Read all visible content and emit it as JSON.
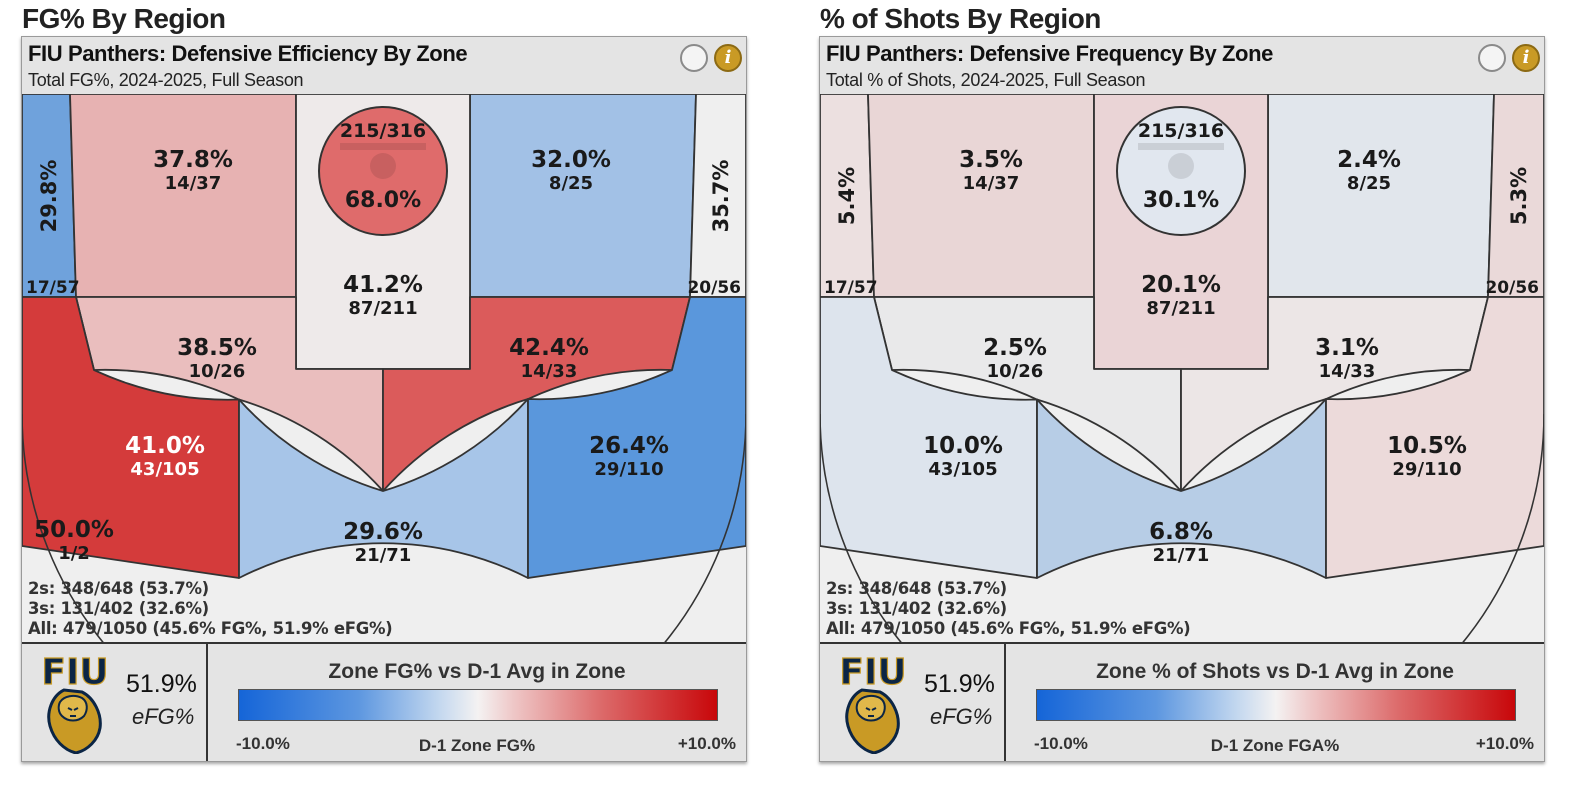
{
  "left": {
    "section_title": "FG% By Region",
    "card_title": "FIU Panthers: Defensive Efficiency By Zone",
    "card_subtitle": "Total FG%, 2024-2025, Full Season",
    "summary": [
      "2s: 348/648 (53.7%)",
      "3s: 131/402 (32.6%)",
      "All: 479/1050 (45.6% FG%, 51.9% eFG%)"
    ],
    "efg_value": "51.9%",
    "efg_label": "eFG%",
    "legend_title": "Zone FG% vs D-1 Avg in Zone",
    "legend_min": "-10.0%",
    "legend_mid": "D-1 Zone FG%",
    "legend_max": "+10.0%"
  },
  "right": {
    "section_title": "% of Shots By Region",
    "card_title": "FIU Panthers: Defensive Frequency By Zone",
    "card_subtitle": "Total % of Shots, 2024-2025, Full Season",
    "summary": [
      "2s: 348/648 (53.7%)",
      "3s: 131/402 (32.6%)",
      "All: 479/1050 (45.6% FG%, 51.9% eFG%)"
    ],
    "efg_value": "51.9%",
    "efg_label": "eFG%",
    "legend_title": "Zone % of Shots vs D-1 Avg in Zone",
    "legend_min": "-10.0%",
    "legend_mid": "D-1 Zone FGA%",
    "legend_max": "+10.0%"
  },
  "logo_text": "FIU",
  "chart_data": [
    {
      "type": "heatmap",
      "title": "FIU Panthers: Defensive Efficiency By Zone",
      "zones": [
        {
          "zone": "left-corner-3",
          "value": "29.8%",
          "attempts": "17/57",
          "color": "#6fa2dc"
        },
        {
          "zone": "left-baseline-mid",
          "value": "37.8%",
          "attempts": "14/37",
          "color": "#e7b2b2"
        },
        {
          "zone": "rim",
          "value": "68.0%",
          "attempts": "215/316",
          "color": "#df6b6b"
        },
        {
          "zone": "paint",
          "value": "41.2%",
          "attempts": "87/211",
          "color": "#eeeaea"
        },
        {
          "zone": "right-baseline-mid",
          "value": "32.0%",
          "attempts": "8/25",
          "color": "#a2c1e6"
        },
        {
          "zone": "right-corner-3",
          "value": "35.7%",
          "attempts": "20/56",
          "color": "#efefef"
        },
        {
          "zone": "left-elbow-mid",
          "value": "38.5%",
          "attempts": "10/26",
          "color": "#eabebe"
        },
        {
          "zone": "right-elbow-mid",
          "value": "42.4%",
          "attempts": "14/33",
          "color": "#db5b5b"
        },
        {
          "zone": "left-wing-3",
          "value": "41.0%",
          "attempts": "43/105",
          "color": "#d43b3b"
        },
        {
          "zone": "top-key-3",
          "value": "29.6%",
          "attempts": "21/71",
          "color": "#a7c5e8"
        },
        {
          "zone": "right-wing-3",
          "value": "26.4%",
          "attempts": "29/110",
          "color": "#5a97dc"
        },
        {
          "zone": "deep",
          "value": "50.0%",
          "attempts": "1/2",
          "color": "#efefef"
        }
      ]
    },
    {
      "type": "heatmap",
      "title": "FIU Panthers: Defensive Frequency By Zone",
      "zones": [
        {
          "zone": "left-corner-3",
          "value": "5.4%",
          "attempts": "17/57",
          "color": "#ece0e0"
        },
        {
          "zone": "left-baseline-mid",
          "value": "3.5%",
          "attempts": "14/37",
          "color": "#e9d6d6"
        },
        {
          "zone": "rim",
          "value": "30.1%",
          "attempts": "215/316",
          "color": "#e1e7ef"
        },
        {
          "zone": "paint",
          "value": "20.1%",
          "attempts": "87/211",
          "color": "#ead4d6"
        },
        {
          "zone": "right-baseline-mid",
          "value": "2.4%",
          "attempts": "8/25",
          "color": "#e1e6ec"
        },
        {
          "zone": "right-corner-3",
          "value": "5.3%",
          "attempts": "20/56",
          "color": "#ead9d9"
        },
        {
          "zone": "left-elbow-mid",
          "value": "2.5%",
          "attempts": "10/26",
          "color": "#e9e9ea"
        },
        {
          "zone": "right-elbow-mid",
          "value": "3.1%",
          "attempts": "14/33",
          "color": "#ece6e6"
        },
        {
          "zone": "left-wing-3",
          "value": "10.0%",
          "attempts": "43/105",
          "color": "#dde4ed"
        },
        {
          "zone": "top-key-3",
          "value": "6.8%",
          "attempts": "21/71",
          "color": "#b7cde6"
        },
        {
          "zone": "right-wing-3",
          "value": "10.5%",
          "attempts": "29/110",
          "color": "#ecdada"
        },
        {
          "zone": "deep",
          "value": "",
          "attempts": "",
          "color": "#efefef"
        }
      ]
    }
  ]
}
